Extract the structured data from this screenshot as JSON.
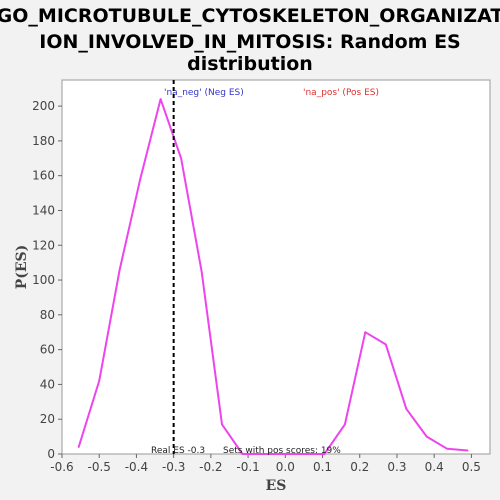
{
  "chart_data": {
    "type": "line",
    "title_lines": [
      "GO_MICROTUBULE_CYTOSKELETON_ORGANIZAT",
      "ION_INVOLVED_IN_MITOSIS: Random ES",
      "distribution"
    ],
    "xlabel": "ES",
    "ylabel": "P(ES)",
    "xlim": [
      -0.6,
      0.55
    ],
    "ylim": [
      0,
      215
    ],
    "xticks": [
      -0.6,
      -0.5,
      -0.4,
      -0.3,
      -0.2,
      -0.1,
      0.0,
      0.1,
      0.2,
      0.3,
      0.4,
      0.5
    ],
    "xtick_labels": [
      "-0.6",
      "-0.5",
      "-0.4",
      "-0.3",
      "-0.2",
      "-0.1",
      "0.0",
      "0.1",
      "0.2",
      "0.3",
      "0.4",
      "0.5"
    ],
    "yticks": [
      0,
      20,
      40,
      60,
      80,
      100,
      120,
      140,
      160,
      180,
      200
    ],
    "ytick_labels": [
      "0",
      "20",
      "40",
      "60",
      "80",
      "100",
      "120",
      "140",
      "160",
      "180",
      "200"
    ],
    "grid": false,
    "legend": {
      "placement": "top",
      "entries": [
        {
          "label": "'na_neg' (Neg ES)",
          "color": "#3333cc"
        },
        {
          "label": "'na_pos' (Pos ES)",
          "color": "#e03030"
        }
      ]
    },
    "series": [
      {
        "color": "#ee44ee",
        "x": [
          -0.555,
          -0.5,
          -0.445,
          -0.39,
          -0.335,
          -0.28,
          -0.225,
          -0.17,
          -0.115,
          -0.06,
          -0.005,
          0.05,
          0.105,
          0.16,
          0.215,
          0.27,
          0.325,
          0.38,
          0.435,
          0.49
        ],
        "y": [
          4,
          42,
          106,
          158,
          204,
          170,
          105,
          17,
          0,
          0,
          0,
          0,
          0,
          17,
          70,
          63,
          26,
          10,
          3,
          2
        ]
      }
    ],
    "vline": {
      "x": -0.3,
      "color": "#000000",
      "style": "dashed"
    },
    "annotations": [
      {
        "text": "Real ES -0.3"
      },
      {
        "text": "Sets with pos scores: 19%"
      }
    ]
  }
}
